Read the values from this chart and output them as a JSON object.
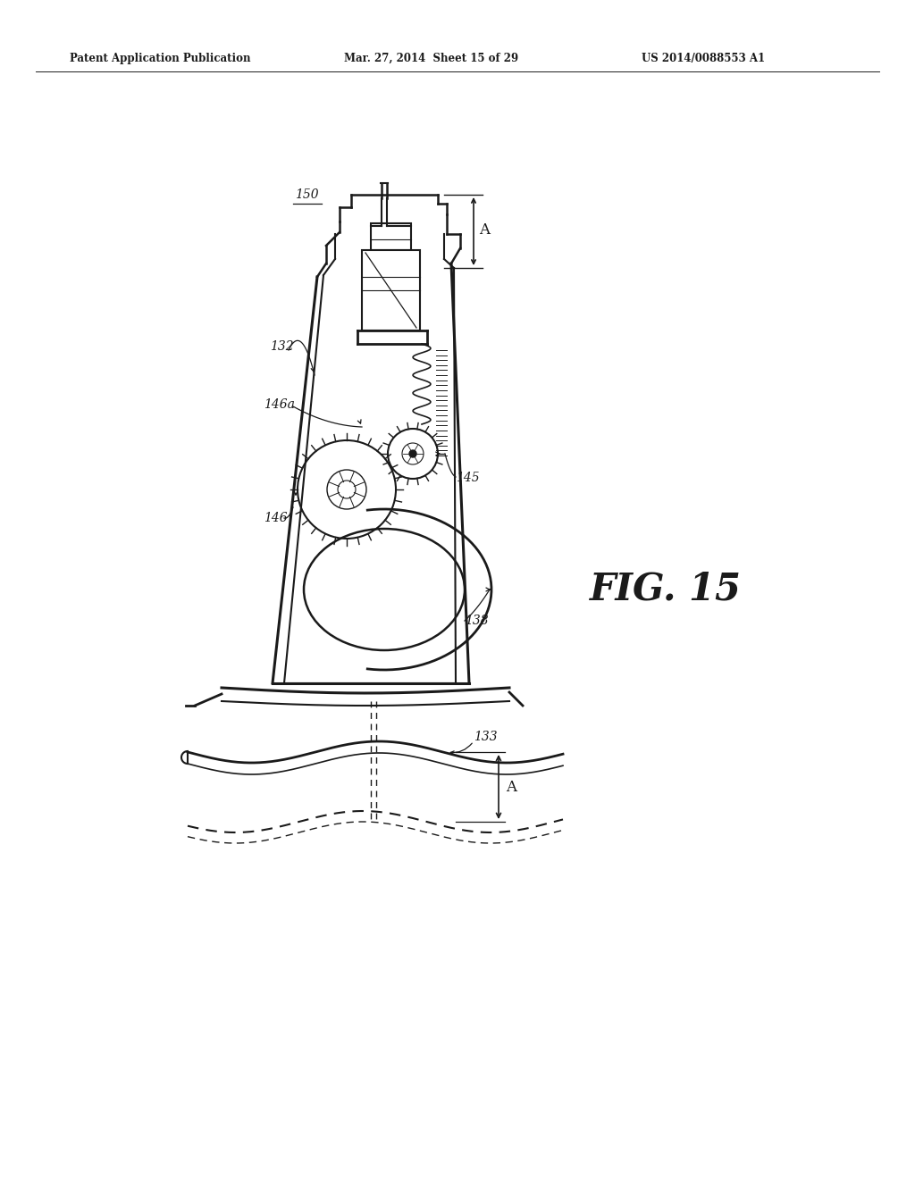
{
  "bg": "#ffffff",
  "lc": "#1a1a1a",
  "header_left": "Patent Application Publication",
  "header_mid": "Mar. 27, 2014  Sheet 15 of 29",
  "header_right": "US 2014/0088553 A1",
  "fig_label": "FIG. 15"
}
